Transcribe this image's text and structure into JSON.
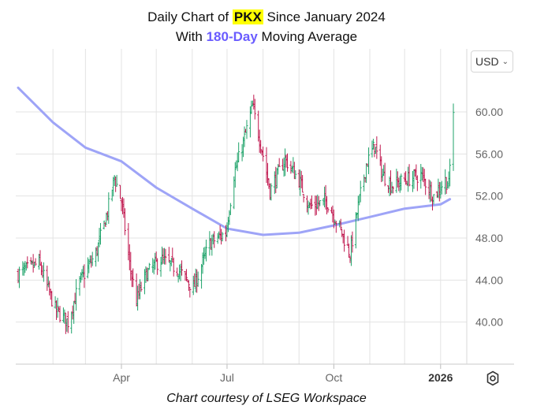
{
  "title": {
    "line1_prefix": "Daily Chart of ",
    "ticker": "PKX",
    "line1_suffix": " Since January 2024",
    "line2_prefix": "With ",
    "ma_label": "180-Day",
    "line2_suffix": " Moving Average"
  },
  "currency_selector": {
    "value": "USD",
    "icon": "chevron-down-icon"
  },
  "settings_icon": "gear-icon",
  "footer": "Chart courtesy of LSEG Workspace",
  "colors": {
    "up": "#1fa36a",
    "down": "#c0174e",
    "ma": "#9ea4f7",
    "highlight": "#ffff00",
    "ma_label": "#6a5cff",
    "grid": "#e3e3e3"
  },
  "chart_data": {
    "type": "ohlc",
    "title": "Daily Chart of PKX Since January 2024",
    "subtitle": "With 180-Day Moving Average",
    "ylim": [
      36,
      66
    ],
    "y_ticks": [
      "60.00",
      "56.00",
      "52.00",
      "48.00",
      "44.00",
      "40.00"
    ],
    "x_ticks": [
      "Apr",
      "Jul",
      "Oct",
      "2026"
    ],
    "grid": true,
    "moving_average_label": "180-Day",
    "price_anchors": [
      {
        "date": "2025-01-02",
        "price": 44.6
      },
      {
        "date": "2025-01-20",
        "price": 45.6
      },
      {
        "date": "2025-02-03",
        "price": 41.2
      },
      {
        "date": "2025-02-14",
        "price": 40.0
      },
      {
        "date": "2025-02-24",
        "price": 43.8
      },
      {
        "date": "2025-03-10",
        "price": 46.5
      },
      {
        "date": "2025-03-20",
        "price": 50.5
      },
      {
        "date": "2025-03-26",
        "price": 53.8
      },
      {
        "date": "2025-04-01",
        "price": 51.5
      },
      {
        "date": "2025-04-08",
        "price": 45.5
      },
      {
        "date": "2025-04-14",
        "price": 42.0
      },
      {
        "date": "2025-04-22",
        "price": 44.5
      },
      {
        "date": "2025-05-05",
        "price": 46.0
      },
      {
        "date": "2025-05-20",
        "price": 45.0
      },
      {
        "date": "2025-06-02",
        "price": 43.2
      },
      {
        "date": "2025-06-16",
        "price": 47.5
      },
      {
        "date": "2025-06-30",
        "price": 48.5
      },
      {
        "date": "2025-07-07",
        "price": 54.0
      },
      {
        "date": "2025-07-16",
        "price": 57.5
      },
      {
        "date": "2025-07-23",
        "price": 60.5
      },
      {
        "date": "2025-07-30",
        "price": 57.0
      },
      {
        "date": "2025-08-07",
        "price": 52.5
      },
      {
        "date": "2025-08-20",
        "price": 55.5
      },
      {
        "date": "2025-09-01",
        "price": 53.5
      },
      {
        "date": "2025-09-10",
        "price": 51.0
      },
      {
        "date": "2025-09-25",
        "price": 51.5
      },
      {
        "date": "2025-10-06",
        "price": 49.0
      },
      {
        "date": "2025-10-15",
        "price": 46.5
      },
      {
        "date": "2025-10-22",
        "price": 51.0
      },
      {
        "date": "2025-10-29",
        "price": 55.0
      },
      {
        "date": "2025-11-05",
        "price": 56.8
      },
      {
        "date": "2025-11-12",
        "price": 54.0
      },
      {
        "date": "2025-11-20",
        "price": 53.0
      },
      {
        "date": "2025-12-01",
        "price": 53.5
      },
      {
        "date": "2025-12-15",
        "price": 54.0
      },
      {
        "date": "2025-12-26",
        "price": 52.0
      },
      {
        "date": "2026-01-05",
        "price": 53.5
      },
      {
        "date": "2026-01-08",
        "price": 53.0
      },
      {
        "date": "2026-01-12",
        "price": 60.2
      }
    ],
    "moving_average": [
      {
        "date": "2025-01-02",
        "value": 62.3
      },
      {
        "date": "2025-02-01",
        "value": 59.0
      },
      {
        "date": "2025-03-01",
        "value": 56.6
      },
      {
        "date": "2025-04-01",
        "value": 55.3
      },
      {
        "date": "2025-05-01",
        "value": 52.8
      },
      {
        "date": "2025-06-01",
        "value": 50.8
      },
      {
        "date": "2025-07-01",
        "value": 48.9
      },
      {
        "date": "2025-08-01",
        "value": 48.3
      },
      {
        "date": "2025-09-01",
        "value": 48.5
      },
      {
        "date": "2025-10-01",
        "value": 49.2
      },
      {
        "date": "2025-11-01",
        "value": 50.0
      },
      {
        "date": "2025-12-01",
        "value": 50.8
      },
      {
        "date": "2026-01-01",
        "value": 51.2
      },
      {
        "date": "2026-01-09",
        "value": 51.7
      }
    ]
  }
}
